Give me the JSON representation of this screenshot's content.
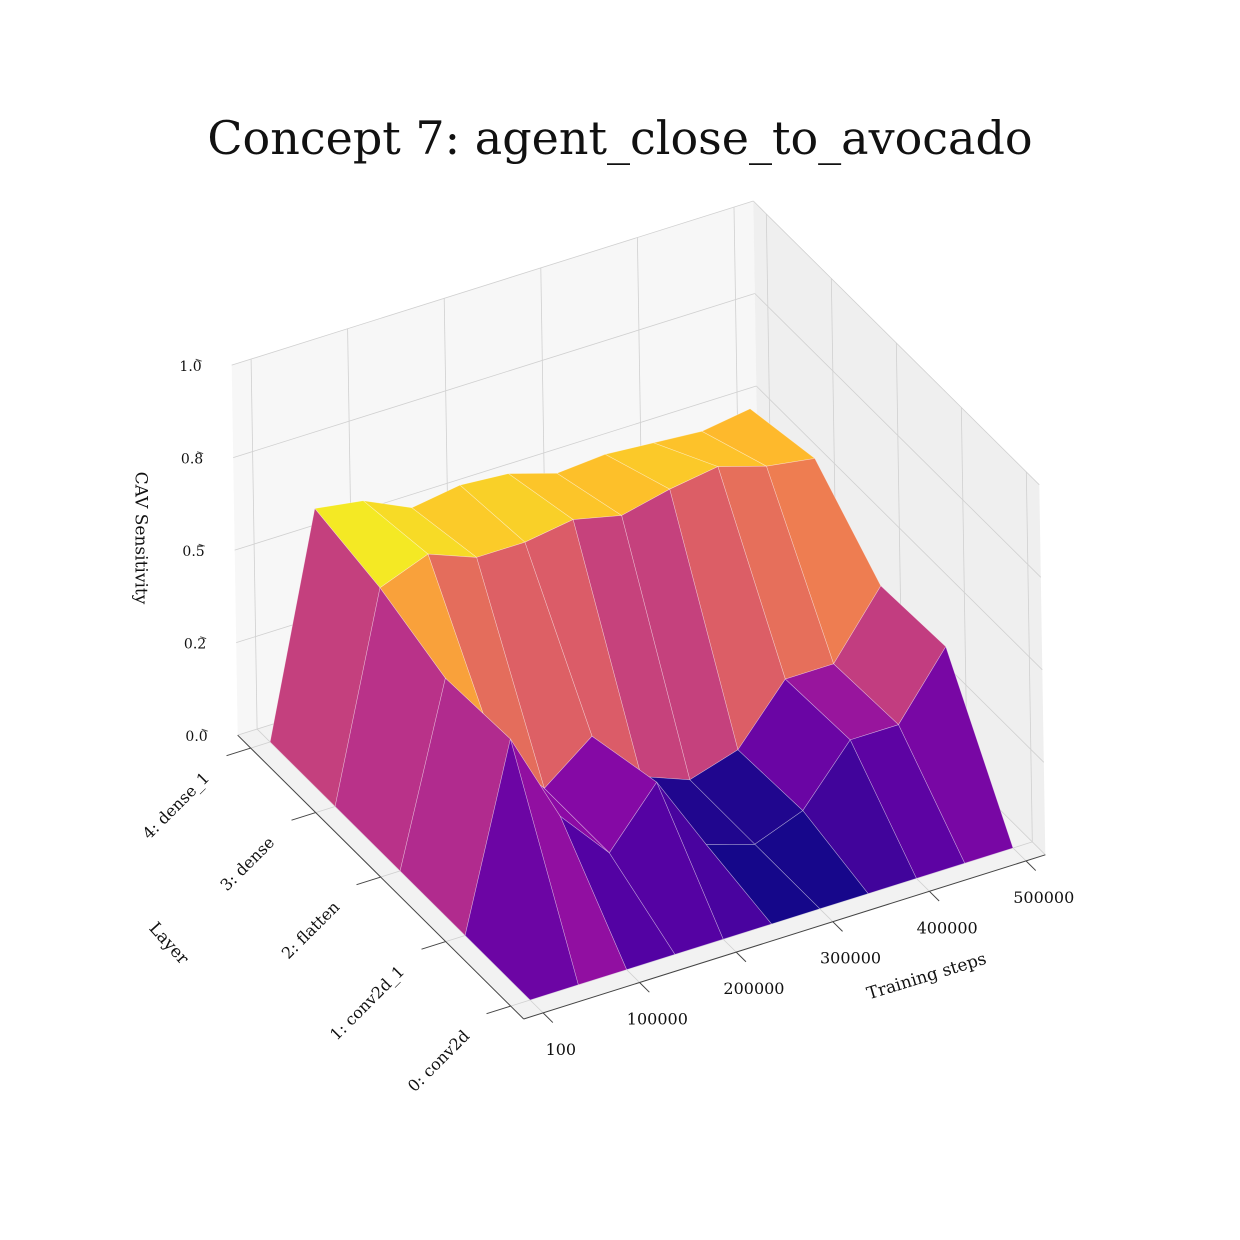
{
  "chart_data": {
    "type": "surface3d",
    "title": "Concept 7: agent_close_to_avocado",
    "xlabel": "Training steps",
    "ylabel": "Layer",
    "zlabel": "CAV Sensitivity",
    "x": [
      100,
      50000,
      100000,
      150000,
      200000,
      250000,
      300000,
      350000,
      400000,
      450000,
      500000
    ],
    "categories": [
      "0: conv2d",
      "1: conv2d_1",
      "2: flatten",
      "3: dense",
      "4: dense_1"
    ],
    "z": [
      [
        0,
        0,
        0,
        0,
        0,
        0,
        0,
        0,
        0,
        0,
        0
      ],
      [
        0,
        0.49,
        0.24,
        0.1,
        0.25,
        0.04,
        0,
        0.05,
        0.2,
        0.2,
        0.37
      ],
      [
        0,
        0.48,
        0.25,
        0.1,
        0.2,
        0.05,
        0,
        0.04,
        0.19,
        0.19,
        0.36
      ],
      [
        0,
        0.55,
        0.6,
        0.55,
        0.55,
        0.57,
        0.54,
        0.57,
        0.59,
        0.55,
        0.53
      ],
      [
        0,
        0.59,
        0.57,
        0.51,
        0.53,
        0.52,
        0.48,
        0.49,
        0.48,
        0.47,
        0.49
      ]
    ],
    "xlim": [
      -20000,
      520000
    ],
    "xticks": [
      100,
      100000,
      200000,
      300000,
      400000,
      500000
    ],
    "ylim": [
      -0.2,
      4.2
    ],
    "zlim": [
      0,
      1
    ],
    "zticks": [
      {
        "value": 0,
        "label": "0.0"
      },
      {
        "value": 0.25,
        "label": "0.2"
      },
      0.5,
      {
        "value": 0.75,
        "label": "0.8"
      },
      {
        "value": 1,
        "label": "1.0"
      }
    ],
    "colormap": "plasma"
  }
}
